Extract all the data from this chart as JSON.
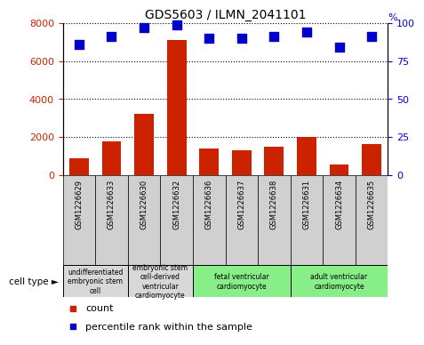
{
  "title": "GDS5603 / ILMN_2041101",
  "samples": [
    "GSM1226629",
    "GSM1226633",
    "GSM1226630",
    "GSM1226632",
    "GSM1226636",
    "GSM1226637",
    "GSM1226638",
    "GSM1226631",
    "GSM1226634",
    "GSM1226635"
  ],
  "counts": [
    850,
    1750,
    3200,
    7100,
    1400,
    1300,
    1500,
    2000,
    550,
    1600
  ],
  "percentiles": [
    86,
    91,
    97,
    99,
    90,
    90,
    91,
    94,
    84,
    91
  ],
  "bar_color": "#cc2200",
  "dot_color": "#0000cc",
  "ylim_left": [
    0,
    8000
  ],
  "ylim_right": [
    0,
    100
  ],
  "yticks_left": [
    0,
    2000,
    4000,
    6000,
    8000
  ],
  "yticks_right": [
    0,
    25,
    50,
    75,
    100
  ],
  "cell_type_groups": [
    {
      "label": "undifferentiated\nembryonic stem\ncell",
      "indices": [
        0,
        1
      ],
      "color": "#d8d8d8"
    },
    {
      "label": "embryonic stem\ncell-derived\nventricular\ncardiomyocyte",
      "indices": [
        2,
        3
      ],
      "color": "#d8d8d8"
    },
    {
      "label": "fetal ventricular\ncardiomyocyte",
      "indices": [
        4,
        5,
        6
      ],
      "color": "#88ee88"
    },
    {
      "label": "adult ventricular\ncardiomyocyte",
      "indices": [
        7,
        8,
        9
      ],
      "color": "#88ee88"
    }
  ],
  "legend_count_label": "count",
  "legend_percentile_label": "percentile rank within the sample",
  "cell_type_label": "cell type",
  "bar_width": 0.6,
  "dot_size": 50,
  "bar_color_red": "#cc2200",
  "dot_color_blue": "#0000cc",
  "grid_color": "#000000",
  "tick_label_color_left": "#cc2200",
  "tick_label_color_right": "#0000cc",
  "sample_box_color": "#d0d0d0"
}
